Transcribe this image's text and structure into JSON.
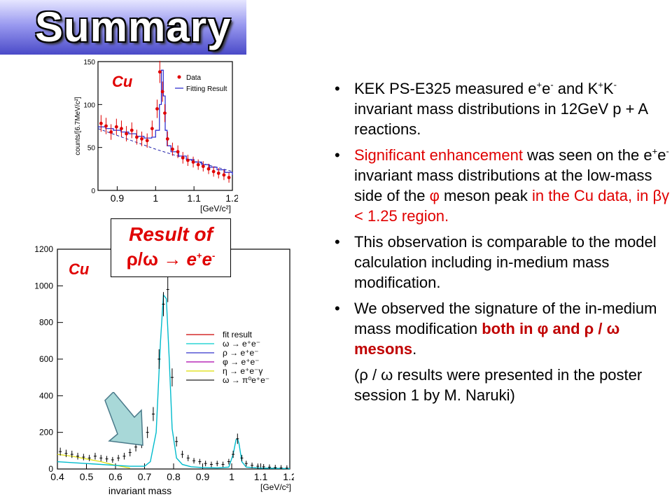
{
  "title": "Summary",
  "bullets": [
    {
      "text_a": "KEK PS-E325 measured e",
      "sup1": "+",
      "mid1": "e",
      "sup2": "-",
      "mid2": " and K",
      "sup3": "+",
      "mid3": "K",
      "sup4": "-",
      "rest": " invariant mass distributions in 12GeV p + A reactions."
    },
    {
      "red1": "Significant enhancement",
      "b1": " was seen on the e",
      "sup1": "+",
      "b2": "e",
      "sup2": "-",
      "b3": " invariant mass distributions at the low-mass side of the ",
      "phi": "φ",
      "b4": " meson peak ",
      "red2": "in the Cu data, in ",
      "bg": "βγ",
      "red3": " < 1.25 region."
    },
    {
      "text": "This observation is comparable to the model calculation including in-medium mass modification."
    },
    {
      "t1": "We observed the signature of the in-medium mass modification ",
      "br1": "both in φ and ρ / ω mesons",
      "t2": "."
    },
    {
      "t1": "(ρ / ω results were presented in the poster session 1 by M. Naruki)"
    }
  ],
  "result_box": {
    "line1": "Result of",
    "rho_omega": "ρ/ω",
    "arrow": "→",
    "ee": "e",
    "sup_p": "+",
    "e2": "e",
    "sup_m": "-"
  },
  "colors": {
    "accent_red": "#e00000",
    "banner": "#6a6ae0",
    "arrow": "#a8d8d8"
  },
  "chart_data": [
    {
      "type": "line",
      "label_text": "Cu",
      "ylabel": "counts/[6.7MeV/c²]",
      "xunit": "[GeV/c²]",
      "xlim": [
        0.85,
        1.2
      ],
      "ylim": [
        0,
        150
      ],
      "xticks": [
        "0.9",
        "1",
        "1.1",
        "1.2"
      ],
      "yticks": [
        "0",
        "50",
        "100",
        "150"
      ],
      "legend": [
        "Data",
        "Fitting Result"
      ],
      "legend_placement": "top-right",
      "series": [
        {
          "name": "Data",
          "x": [
            0.858,
            0.871,
            0.884,
            0.898,
            0.911,
            0.924,
            0.938,
            0.951,
            0.964,
            0.978,
            0.991,
            1.004,
            1.011,
            1.018,
            1.024,
            1.031,
            1.044,
            1.058,
            1.071,
            1.084,
            1.098,
            1.111,
            1.124,
            1.138,
            1.151,
            1.164,
            1.178,
            1.191
          ],
          "y": [
            78,
            75,
            68,
            74,
            72,
            66,
            70,
            62,
            60,
            58,
            72,
            95,
            138,
            115,
            90,
            60,
            48,
            45,
            38,
            35,
            33,
            30,
            28,
            25,
            22,
            20,
            18,
            15
          ]
        },
        {
          "name": "Fitting Result",
          "x": [
            0.85,
            0.87,
            0.89,
            0.91,
            0.93,
            0.95,
            0.97,
            0.99,
            1.0,
            1.01,
            1.015,
            1.02,
            1.025,
            1.03,
            1.04,
            1.06,
            1.08,
            1.1,
            1.12,
            1.14,
            1.16,
            1.18,
            1.2
          ],
          "y": [
            74,
            72,
            70,
            68,
            66,
            63,
            61,
            62,
            70,
            100,
            140,
            110,
            70,
            52,
            45,
            40,
            36,
            33,
            30,
            27,
            24,
            21,
            18
          ]
        },
        {
          "name": "background",
          "x": [
            0.85,
            0.9,
            0.95,
            1.0,
            1.05,
            1.1,
            1.15,
            1.2
          ],
          "y": [
            72,
            64,
            56,
            48,
            41,
            34,
            28,
            22
          ]
        }
      ]
    },
    {
      "type": "line",
      "label_text": "Cu",
      "xlabel": "invariant mass",
      "xunit": "[GeV/c²]",
      "xlim": [
        0.4,
        1.2
      ],
      "ylim": [
        0,
        1200
      ],
      "xticks": [
        "0.4",
        "0.5",
        "0.6",
        "0.7",
        "0.8",
        "0.9",
        "1",
        "1.1",
        "1.2"
      ],
      "yticks": [
        "0",
        "200",
        "400",
        "600",
        "800",
        "1000",
        "1200"
      ],
      "legend": [
        "fit result",
        "ω → e⁺e⁻",
        "ρ → e⁺e⁻",
        "φ → e⁺e⁻",
        "η → e⁺e⁻γ",
        "ω → π⁰e⁺e⁻"
      ],
      "legend_colors": [
        "#cc0000",
        "#00cccc",
        "#3333cc",
        "#aa00aa",
        "#dddd00",
        "#222222"
      ],
      "series": [
        {
          "name": "data",
          "x": [
            0.41,
            0.43,
            0.45,
            0.47,
            0.49,
            0.51,
            0.53,
            0.55,
            0.57,
            0.59,
            0.61,
            0.63,
            0.65,
            0.67,
            0.69,
            0.71,
            0.73,
            0.75,
            0.765,
            0.78,
            0.795,
            0.81,
            0.83,
            0.85,
            0.87,
            0.89,
            0.91,
            0.93,
            0.95,
            0.97,
            0.99,
            1.005,
            1.02,
            1.035,
            1.05,
            1.07,
            1.09,
            1.11,
            1.13,
            1.15,
            1.17,
            1.19
          ],
          "y": [
            95,
            85,
            80,
            70,
            65,
            60,
            70,
            60,
            55,
            50,
            60,
            70,
            90,
            120,
            140,
            200,
            300,
            600,
            900,
            980,
            500,
            150,
            80,
            60,
            45,
            40,
            30,
            25,
            30,
            25,
            40,
            80,
            165,
            60,
            30,
            20,
            15,
            12,
            10,
            8,
            6,
            5
          ]
        },
        {
          "name": "fit result",
          "x": [
            0.4,
            0.5,
            0.6,
            0.65,
            0.7,
            0.72,
            0.74,
            0.755,
            0.765,
            0.775,
            0.785,
            0.795,
            0.81,
            0.83,
            0.86,
            0.9,
            0.95,
            0.99,
            1.005,
            1.015,
            1.02,
            1.025,
            1.035,
            1.05,
            1.1,
            1.2
          ],
          "y": [
            40,
            30,
            20,
            15,
            15,
            40,
            200,
            700,
            950,
            930,
            600,
            220,
            60,
            25,
            12,
            8,
            6,
            10,
            80,
            160,
            165,
            140,
            40,
            10,
            5,
            2
          ]
        },
        {
          "name": "η → e⁺e⁻γ",
          "x": [
            0.4,
            0.45,
            0.5,
            0.55,
            0.6,
            0.65
          ],
          "y": [
            80,
            70,
            55,
            40,
            20,
            5
          ]
        }
      ]
    }
  ]
}
